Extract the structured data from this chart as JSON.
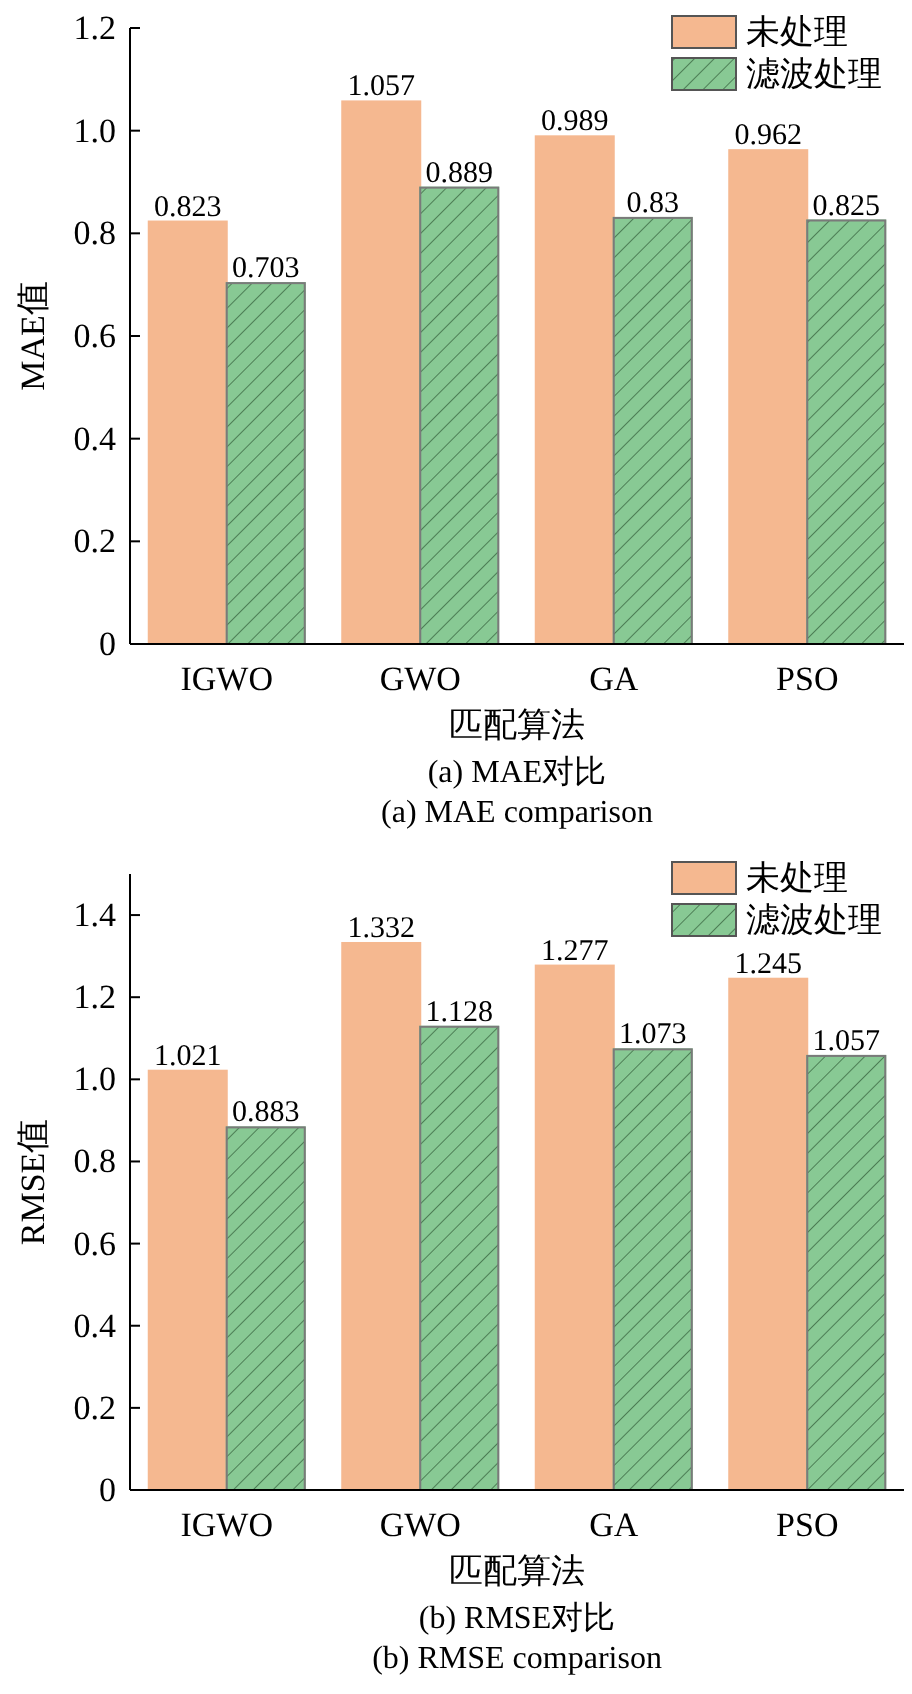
{
  "chart_data": [
    {
      "type": "bar",
      "categories": [
        "IGWO",
        "GWO",
        "GA",
        "PSO"
      ],
      "xlabel": "匹配算法",
      "ylabel": "MAE值",
      "ylim": [
        0,
        1.2
      ],
      "yticks": [
        {
          "value": 0,
          "label": "0"
        },
        {
          "value": 0.2,
          "label": "0.2"
        },
        {
          "value": 0.4,
          "label": "0.4"
        },
        {
          "value": 0.6,
          "label": "0.6"
        },
        {
          "value": 0.8,
          "label": "0.8"
        },
        {
          "value": 1,
          "label": "1.0"
        },
        {
          "value": 1.2,
          "label": "1.2"
        }
      ],
      "legend": "top right",
      "data_labels": true,
      "series": [
        {
          "name": "未处理",
          "color": "#f5b890",
          "values": [
            0.823,
            1.057,
            0.989,
            0.962
          ]
        },
        {
          "name": "滤波处理",
          "color": "#88c994",
          "values": [
            0.703,
            0.889,
            0.83,
            0.825
          ]
        }
      ],
      "annotations": [
        "(a) MAE对比",
        "(a) MAE comparison"
      ]
    },
    {
      "type": "bar",
      "categories": [
        "IGWO",
        "GWO",
        "GA",
        "PSO"
      ],
      "xlabel": "匹配算法",
      "ylabel": "RMSE值",
      "ylim": [
        0,
        1.5
      ],
      "yticks": [
        {
          "value": 0,
          "label": "0"
        },
        {
          "value": 0.2,
          "label": "0.2"
        },
        {
          "value": 0.4,
          "label": "0.4"
        },
        {
          "value": 0.6,
          "label": "0.6"
        },
        {
          "value": 0.8,
          "label": "0.8"
        },
        {
          "value": 1,
          "label": "1.0"
        },
        {
          "value": 1.2,
          "label": "1.2"
        },
        {
          "value": 1.4,
          "label": "1.4"
        }
      ],
      "legend": "top right",
      "data_labels": true,
      "series": [
        {
          "name": "未处理",
          "color": "#f5b890",
          "values": [
            1.021,
            1.332,
            1.277,
            1.245
          ]
        },
        {
          "name": "滤波处理",
          "color": "#88c994",
          "values": [
            0.883,
            1.128,
            1.073,
            1.057
          ]
        }
      ],
      "annotations": [
        "(b) RMSE对比",
        "(b) RMSE comparison"
      ]
    }
  ]
}
